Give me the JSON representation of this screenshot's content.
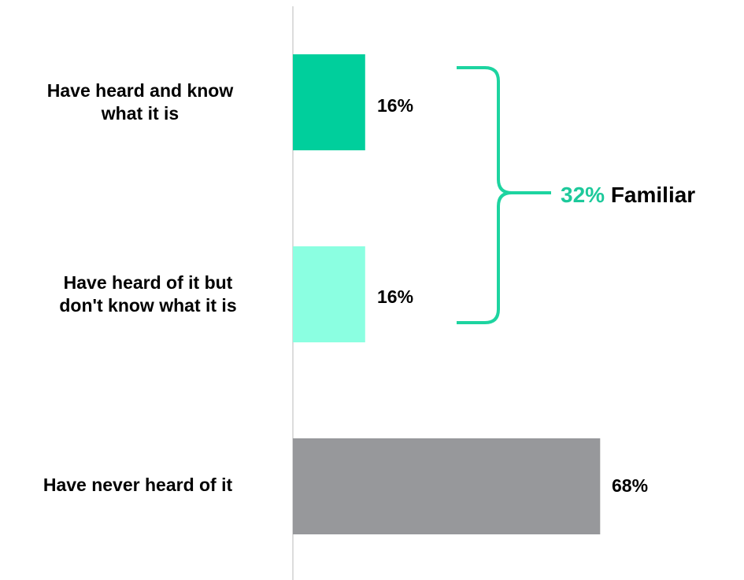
{
  "chart_data": {
    "type": "bar",
    "orientation": "horizontal",
    "categories": [
      "Have heard and know what it is",
      "Have heard of it but don't know what it is",
      "Have never heard of it"
    ],
    "category_lines": [
      [
        "Have heard and know",
        "what it is"
      ],
      [
        "Have heard of it but",
        "don't know what it is"
      ]
    ],
    "values": [
      16,
      16,
      68
    ],
    "value_labels": [
      "16%",
      "16%",
      "68%"
    ],
    "colors": [
      "#00cf9c",
      "#8bffe1",
      "#97989b"
    ],
    "xlim": [
      0,
      100
    ],
    "grid": false,
    "legend": "none",
    "title": "",
    "xlabel": "",
    "ylabel": "",
    "annotation": {
      "value": "32%",
      "label": "Familiar",
      "value_color": "#1dc99b",
      "bracket_color": "#1dd4a0",
      "spans": [
        0,
        1
      ]
    }
  }
}
